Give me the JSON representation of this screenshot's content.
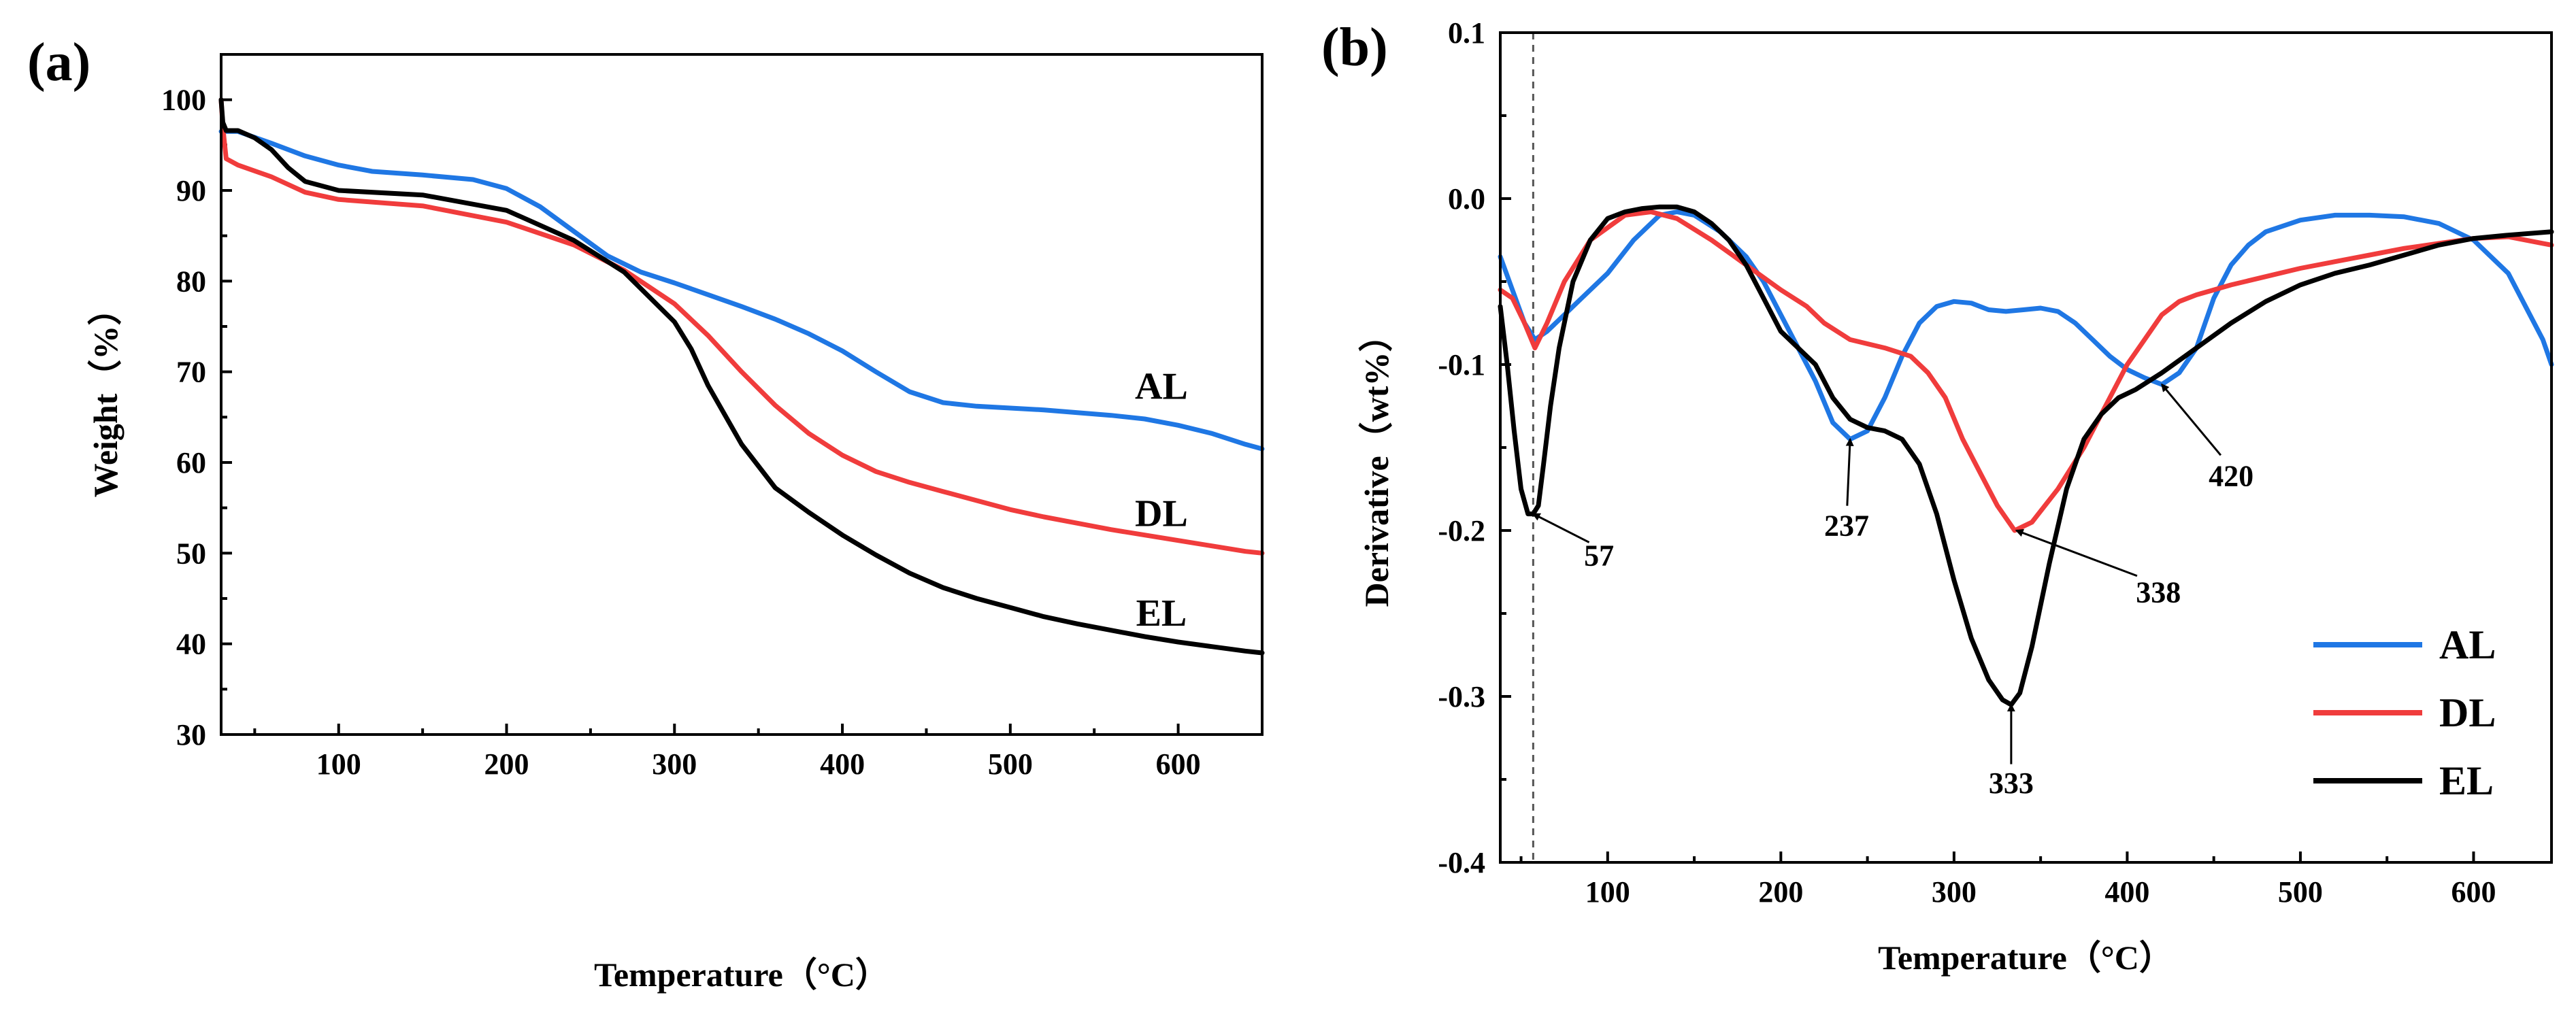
{
  "chart_data": [
    {
      "panel": "(a)",
      "type": "line",
      "xlabel": "Temperature（°C）",
      "ylabel": "Weight（%）",
      "xlim": [
        30,
        650
      ],
      "ylim": [
        30,
        105
      ],
      "xticks": [
        100,
        200,
        300,
        400,
        500,
        600
      ],
      "yticks": [
        30,
        40,
        50,
        60,
        70,
        80,
        90,
        100
      ],
      "series": [
        {
          "name": "AL",
          "color": "#1f77e4",
          "x": [
            30,
            40,
            60,
            80,
            100,
            120,
            150,
            180,
            200,
            220,
            240,
            260,
            280,
            300,
            320,
            340,
            360,
            380,
            400,
            420,
            440,
            460,
            480,
            500,
            520,
            540,
            560,
            580,
            600,
            620,
            640,
            650
          ],
          "y": [
            96.5,
            96.5,
            95.2,
            93.8,
            92.8,
            92.1,
            91.7,
            91.2,
            90.2,
            88.2,
            85.5,
            82.8,
            81.0,
            79.8,
            78.5,
            77.2,
            75.8,
            74.2,
            72.3,
            70.0,
            67.8,
            66.6,
            66.2,
            66.0,
            65.8,
            65.5,
            65.2,
            64.8,
            64.1,
            63.2,
            62.0,
            61.5
          ]
        },
        {
          "name": "DL",
          "color": "#f03c3c",
          "x": [
            30,
            31,
            33,
            40,
            60,
            80,
            100,
            150,
            200,
            240,
            270,
            300,
            320,
            340,
            360,
            380,
            400,
            420,
            440,
            460,
            480,
            500,
            520,
            540,
            560,
            580,
            600,
            620,
            640,
            650
          ],
          "y": [
            100.0,
            97.0,
            93.5,
            92.8,
            91.5,
            89.8,
            89.0,
            88.3,
            86.5,
            84.0,
            81.2,
            77.5,
            74.0,
            70.0,
            66.3,
            63.2,
            60.8,
            59.0,
            57.8,
            56.8,
            55.8,
            54.8,
            54.0,
            53.3,
            52.6,
            52.0,
            51.4,
            50.8,
            50.2,
            50.0
          ]
        },
        {
          "name": "EL",
          "color": "#000000",
          "x": [
            30,
            31,
            33,
            40,
            50,
            60,
            70,
            80,
            100,
            150,
            200,
            240,
            270,
            300,
            310,
            320,
            340,
            360,
            380,
            400,
            420,
            440,
            460,
            480,
            500,
            520,
            540,
            560,
            580,
            600,
            620,
            640,
            650
          ],
          "y": [
            100.0,
            97.5,
            96.6,
            96.6,
            95.8,
            94.5,
            92.5,
            91.0,
            90.0,
            89.5,
            87.8,
            84.5,
            81.0,
            75.5,
            72.5,
            68.5,
            62.0,
            57.2,
            54.5,
            52.0,
            49.8,
            47.8,
            46.2,
            45.0,
            44.0,
            43.0,
            42.2,
            41.5,
            40.8,
            40.2,
            39.7,
            39.2,
            39.0
          ]
        }
      ],
      "labels": [
        {
          "text": "AL",
          "x": 590,
          "y": 68.5
        },
        {
          "text": "DL",
          "x": 590,
          "y": 54.5
        },
        {
          "text": "EL",
          "x": 590,
          "y": 43.5
        }
      ]
    },
    {
      "panel": "(b)",
      "type": "line",
      "xlabel": "Temperature（°C）",
      "ylabel": "Derivative（wt%）",
      "xlim": [
        38,
        645
      ],
      "ylim": [
        -0.4,
        0.1
      ],
      "xticks": [
        100,
        200,
        300,
        400,
        500,
        600
      ],
      "yticks": [
        -0.4,
        -0.3,
        -0.2,
        -0.1,
        0.0,
        0.1
      ],
      "ytick_labels": [
        "-0.4",
        "-0.3",
        "-0.2",
        "-0.1",
        "0.0",
        "0.1"
      ],
      "reference_line_x": 57,
      "legend": {
        "position": "bottom-right",
        "entries": [
          "AL",
          "DL",
          "EL"
        ]
      },
      "series": [
        {
          "name": "AL",
          "color": "#1f77e4",
          "x": [
            38,
            45,
            52,
            58,
            65,
            75,
            85,
            100,
            115,
            130,
            140,
            150,
            165,
            180,
            190,
            200,
            210,
            220,
            230,
            240,
            250,
            260,
            270,
            280,
            290,
            300,
            310,
            320,
            330,
            340,
            350,
            360,
            370,
            380,
            390,
            400,
            410,
            420,
            430,
            440,
            450,
            460,
            470,
            480,
            500,
            520,
            540,
            560,
            580,
            600,
            620,
            640,
            645
          ],
          "y": [
            -0.035,
            -0.055,
            -0.075,
            -0.085,
            -0.08,
            -0.07,
            -0.06,
            -0.045,
            -0.025,
            -0.01,
            -0.008,
            -0.01,
            -0.02,
            -0.035,
            -0.05,
            -0.07,
            -0.09,
            -0.11,
            -0.135,
            -0.145,
            -0.14,
            -0.12,
            -0.095,
            -0.075,
            -0.065,
            -0.062,
            -0.063,
            -0.067,
            -0.068,
            -0.067,
            -0.066,
            -0.068,
            -0.075,
            -0.085,
            -0.095,
            -0.103,
            -0.108,
            -0.112,
            -0.105,
            -0.09,
            -0.06,
            -0.04,
            -0.028,
            -0.02,
            -0.013,
            -0.01,
            -0.01,
            -0.011,
            -0.015,
            -0.025,
            -0.045,
            -0.085,
            -0.1
          ]
        },
        {
          "name": "DL",
          "color": "#f03c3c",
          "x": [
            38,
            45,
            52,
            58,
            65,
            75,
            90,
            110,
            125,
            140,
            160,
            180,
            200,
            215,
            225,
            240,
            260,
            275,
            285,
            295,
            305,
            315,
            325,
            335,
            345,
            360,
            375,
            390,
            400,
            410,
            420,
            430,
            440,
            450,
            460,
            480,
            500,
            520,
            540,
            560,
            580,
            600,
            620,
            640,
            645
          ],
          "y": [
            -0.055,
            -0.06,
            -0.075,
            -0.09,
            -0.075,
            -0.05,
            -0.025,
            -0.01,
            -0.008,
            -0.012,
            -0.025,
            -0.04,
            -0.055,
            -0.065,
            -0.075,
            -0.085,
            -0.09,
            -0.095,
            -0.105,
            -0.12,
            -0.145,
            -0.165,
            -0.185,
            -0.2,
            -0.195,
            -0.175,
            -0.15,
            -0.12,
            -0.1,
            -0.085,
            -0.07,
            -0.062,
            -0.058,
            -0.055,
            -0.052,
            -0.047,
            -0.042,
            -0.038,
            -0.034,
            -0.03,
            -0.027,
            -0.024,
            -0.023,
            -0.027,
            -0.028
          ]
        },
        {
          "name": "EL",
          "color": "#000000",
          "x": [
            38,
            42,
            46,
            50,
            54,
            57,
            60,
            63,
            67,
            72,
            80,
            90,
            100,
            110,
            120,
            130,
            140,
            150,
            160,
            170,
            180,
            190,
            200,
            210,
            220,
            230,
            240,
            250,
            260,
            270,
            280,
            290,
            300,
            310,
            320,
            328,
            333,
            338,
            345,
            355,
            365,
            375,
            385,
            395,
            405,
            420,
            440,
            460,
            480,
            500,
            520,
            540,
            560,
            580,
            600,
            620,
            645
          ],
          "y": [
            -0.065,
            -0.1,
            -0.14,
            -0.175,
            -0.19,
            -0.19,
            -0.185,
            -0.16,
            -0.125,
            -0.09,
            -0.05,
            -0.025,
            -0.012,
            -0.008,
            -0.006,
            -0.005,
            -0.005,
            -0.008,
            -0.015,
            -0.025,
            -0.04,
            -0.06,
            -0.08,
            -0.09,
            -0.1,
            -0.12,
            -0.133,
            -0.138,
            -0.14,
            -0.145,
            -0.16,
            -0.19,
            -0.23,
            -0.265,
            -0.29,
            -0.302,
            -0.305,
            -0.298,
            -0.27,
            -0.22,
            -0.175,
            -0.145,
            -0.13,
            -0.12,
            -0.115,
            -0.105,
            -0.09,
            -0.075,
            -0.062,
            -0.052,
            -0.045,
            -0.04,
            -0.034,
            -0.028,
            -0.024,
            -0.022,
            -0.02
          ]
        }
      ],
      "annotations": [
        {
          "text": "57",
          "point": [
            57,
            -0.19
          ],
          "text_at": [
            95,
            -0.215
          ]
        },
        {
          "text": "237",
          "point": [
            240,
            -0.145
          ],
          "text_at": [
            238,
            -0.197
          ]
        },
        {
          "text": "338",
          "point": [
            336,
            -0.2
          ],
          "text_at": [
            418,
            -0.237
          ]
        },
        {
          "text": "420",
          "point": [
            420,
            -0.112
          ],
          "text_at": [
            460,
            -0.167
          ]
        },
        {
          "text": "333",
          "point": [
            333,
            -0.305
          ],
          "text_at": [
            333,
            -0.352
          ]
        }
      ]
    }
  ]
}
